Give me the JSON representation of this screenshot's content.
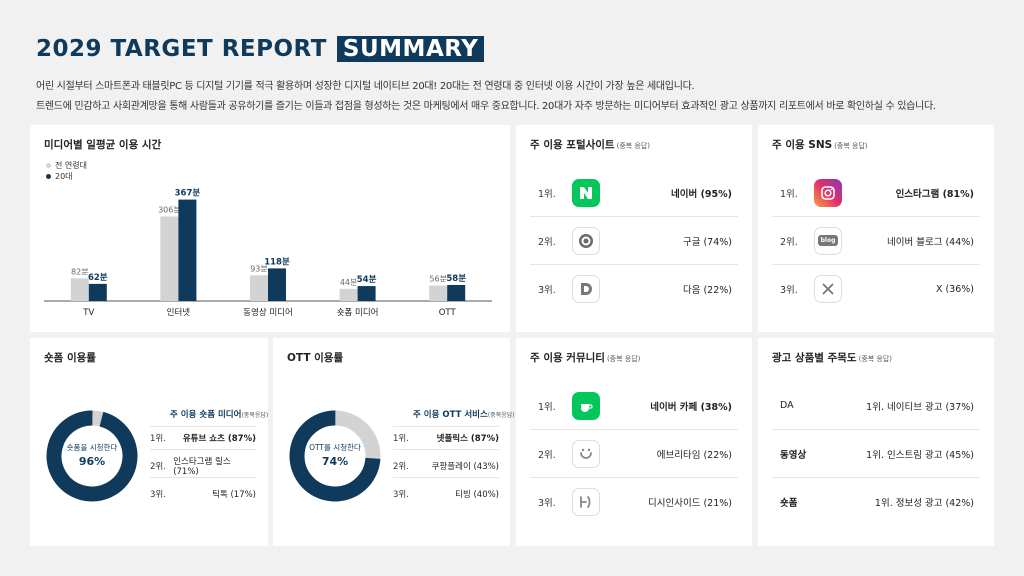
{
  "header": {
    "title": "2029 TARGET REPORT",
    "title_highlight": "SUMMARY",
    "intro_line1": "어린 시절부터 스마트폰과 태블릿PC 등 디지털 기기를 적극 활용하며 성장한 디지털 네이티브 20대! 20대는 전 연령대 중 인터넷 이용 시간이 가장 높은 세대입니다.",
    "intro_line2": "트렌드에 민감하고 사회관계망을 통해 사람들과 공유하기를 즐기는 이들과 접점을 형성하는 것은 마케팅에서 매우 중요합니다. 20대가 자주 방문하는 미디어부터 효과적인 광고 상품까지 리포트에서 바로 확인하실 수 있습니다."
  },
  "media_time": {
    "title": "미디어별 일평균 이용 시간",
    "legend_all": "전 연령대",
    "legend_20s": "20대"
  },
  "chart_data": {
    "type": "bar",
    "title": "미디어별 일평균 이용 시간",
    "categories": [
      "TV",
      "인터넷",
      "동영상 미디어",
      "숏폼 미디어",
      "OTT"
    ],
    "series": [
      {
        "name": "전 연령대",
        "values": [
          82,
          306,
          93,
          44,
          56
        ],
        "labels": [
          "82분",
          "306분",
          "93분",
          "44분",
          "56분"
        ],
        "color": "#d3d3d3"
      },
      {
        "name": "20대",
        "values": [
          62,
          367,
          118,
          54,
          58
        ],
        "labels": [
          "62분",
          "367분",
          "118분",
          "54분",
          "58분"
        ],
        "color": "#0f3a5c"
      }
    ],
    "ylim": [
      0,
      400
    ],
    "grid": false,
    "legend_position": "top-left"
  },
  "portal": {
    "title": "주 이용 포털사이트",
    "sub": "(중복 응답)",
    "items": [
      {
        "rank": "1위.",
        "name": "네이버 (95%)",
        "icon": "naver-icon"
      },
      {
        "rank": "2위.",
        "name": "구글 (74%)",
        "icon": "google-icon"
      },
      {
        "rank": "3위.",
        "name": "다음 (22%)",
        "icon": "daum-icon"
      }
    ]
  },
  "sns": {
    "title": "주 이용 SNS",
    "sub": "(중복 응답)",
    "items": [
      {
        "rank": "1위.",
        "name": "인스타그램 (81%)",
        "icon": "instagram-icon"
      },
      {
        "rank": "2위.",
        "name": "네이버 블로그 (44%)",
        "icon": "naver-blog-icon",
        "icon_text": "blog"
      },
      {
        "rank": "3위.",
        "name": "X (36%)",
        "icon": "x-icon"
      }
    ]
  },
  "shortform": {
    "title": "숏폼 이용률",
    "donut_label": "숏폼을 시청한다",
    "donut_value": "96%",
    "percent": 96,
    "list_title": "주 이용 숏폼 미디어",
    "list_sub": "(중복응답)",
    "items": [
      {
        "rank": "1위.",
        "name": "유튜브 쇼츠 (87%)"
      },
      {
        "rank": "2위.",
        "name": "인스타그램 릴스 (71%)"
      },
      {
        "rank": "3위.",
        "name": "틱톡 (17%)"
      }
    ]
  },
  "ott": {
    "title": "OTT 이용률",
    "donut_label": "OTT를 시청한다",
    "donut_value": "74%",
    "percent": 74,
    "list_title": "주 이용 OTT 서비스",
    "list_sub": "(중복응답)",
    "items": [
      {
        "rank": "1위.",
        "name": "넷플릭스 (87%)"
      },
      {
        "rank": "2위.",
        "name": "쿠팡플레이 (43%)"
      },
      {
        "rank": "3위.",
        "name": "티빙 (40%)"
      }
    ]
  },
  "community": {
    "title": "주 이용 커뮤니티",
    "sub": "(중복 응답)",
    "items": [
      {
        "rank": "1위.",
        "name": "네이버 카페 (38%)",
        "icon": "naver-cafe-icon"
      },
      {
        "rank": "2위.",
        "name": "에브리타임 (22%)",
        "icon": "everytime-icon"
      },
      {
        "rank": "3위.",
        "name": "디시인사이드 (21%)",
        "icon": "dcinside-icon"
      }
    ]
  },
  "ads": {
    "title": "광고 상품별 주목도",
    "sub": "(중복 응답)",
    "items": [
      {
        "label": "DA",
        "value": "1위. 네이티브 광고 (37%)"
      },
      {
        "label": "동영상",
        "value": "1위. 인스트림 광고 (45%)"
      },
      {
        "label": "숏폼",
        "value": "1위. 정보성 광고 (42%)"
      }
    ]
  },
  "colors": {
    "navy": "#0f3a5c",
    "gray": "#d3d3d3",
    "naver": "#03c75a"
  }
}
